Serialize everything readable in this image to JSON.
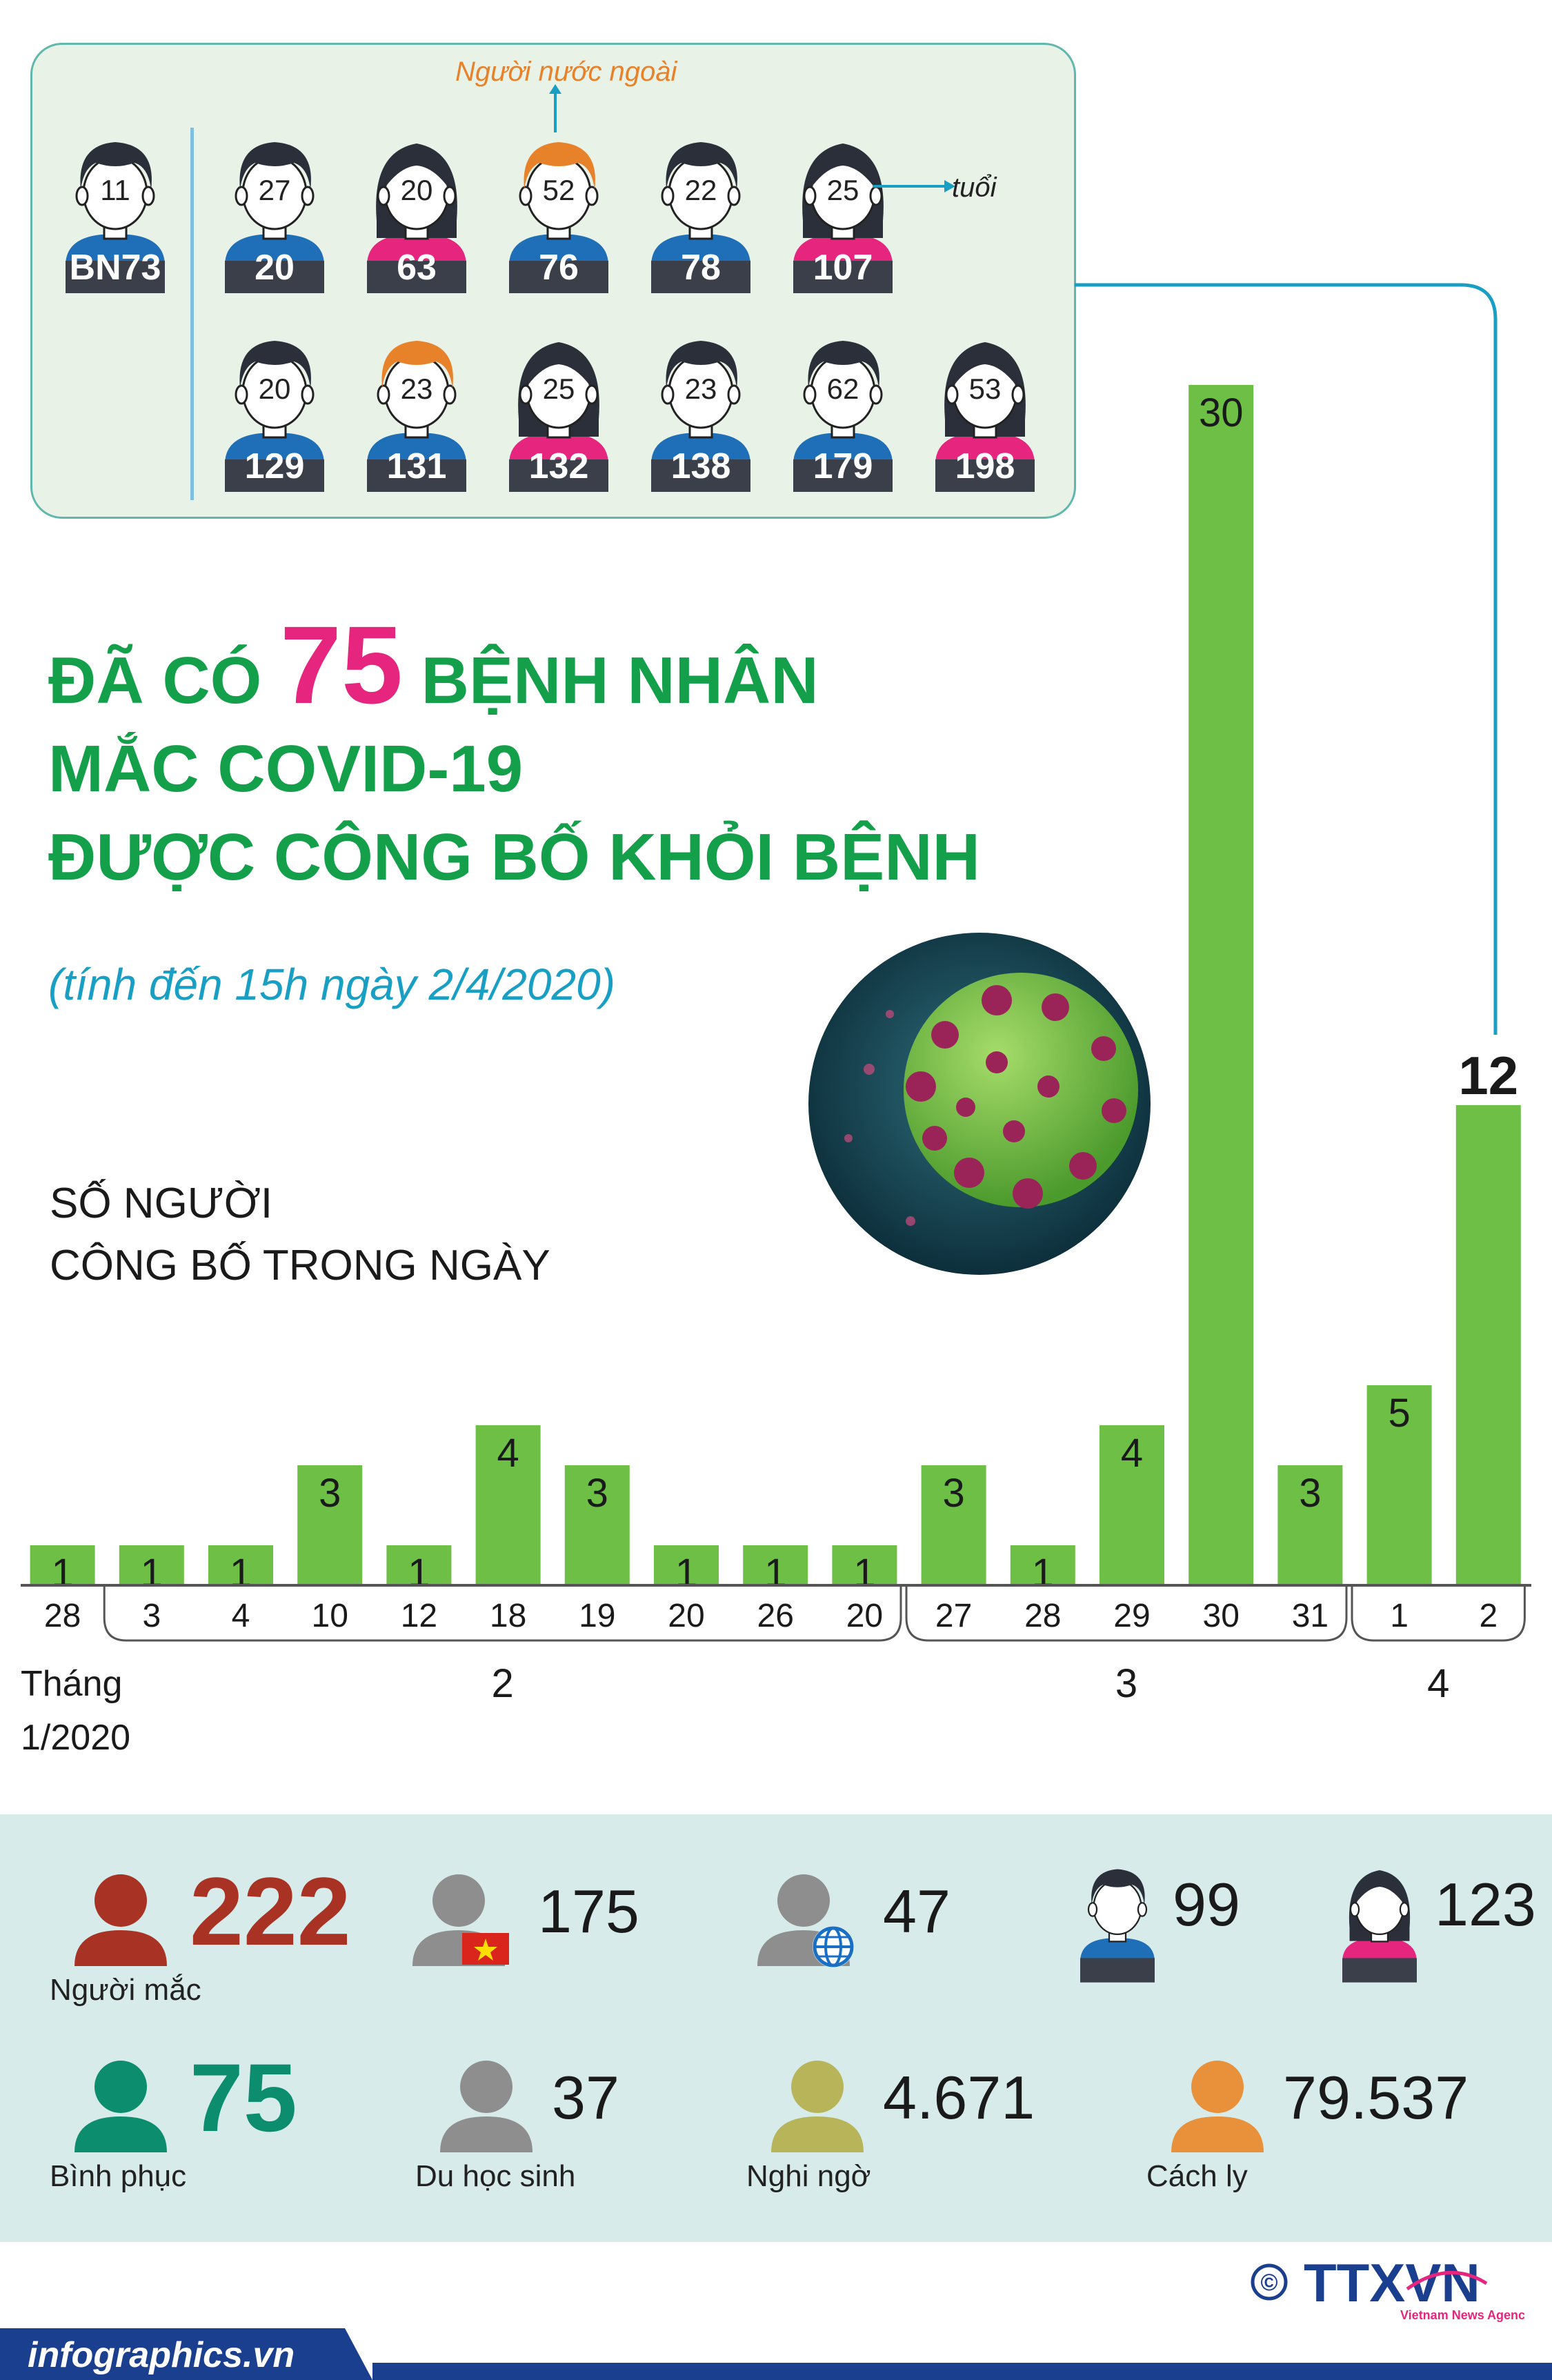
{
  "patients": {
    "first": {
      "age": "11",
      "id": "BN73",
      "gender": "male",
      "hair": "dark"
    },
    "row1": [
      {
        "age": "27",
        "id": "20",
        "gender": "male",
        "hair": "dark"
      },
      {
        "age": "20",
        "id": "63",
        "gender": "female",
        "hair": "dark"
      },
      {
        "age": "52",
        "id": "76",
        "gender": "male",
        "hair": "orange"
      },
      {
        "age": "22",
        "id": "78",
        "gender": "male",
        "hair": "dark"
      },
      {
        "age": "25",
        "id": "107",
        "gender": "female",
        "hair": "dark"
      }
    ],
    "row2": [
      {
        "age": "20",
        "id": "129",
        "gender": "male",
        "hair": "dark"
      },
      {
        "age": "23",
        "id": "131",
        "gender": "male",
        "hair": "orange"
      },
      {
        "age": "25",
        "id": "132",
        "gender": "female",
        "hair": "dark"
      },
      {
        "age": "23",
        "id": "138",
        "gender": "male",
        "hair": "dark"
      },
      {
        "age": "62",
        "id": "179",
        "gender": "male",
        "hair": "dark"
      },
      {
        "age": "53",
        "id": "198",
        "gender": "female",
        "hair": "dark"
      }
    ],
    "foreigner_label": "Người nước ngoài",
    "age_label": "tuổi"
  },
  "title": {
    "line1_pre": "ĐÃ CÓ",
    "number": "75",
    "line1_post": "BỆNH NHÂN",
    "line2": "MẮC COVID-19",
    "line3": "ĐƯỢC CÔNG BỐ KHỎI BỆNH"
  },
  "subtitle": "(tính đến 15h ngày 2/4/2020)",
  "chart_data": {
    "type": "bar",
    "title": "SỐ NGƯỜI CÔNG BỐ TRONG NGÀY",
    "title_lines": [
      "SỐ NGƯỜI",
      "CÔNG BỐ TRONG NGÀY"
    ],
    "categories": [
      "28",
      "3",
      "4",
      "10",
      "12",
      "18",
      "19",
      "20",
      "26",
      "20",
      "27",
      "28",
      "29",
      "30",
      "31",
      "1",
      "2"
    ],
    "values": [
      1,
      1,
      1,
      3,
      1,
      4,
      3,
      1,
      1,
      1,
      3,
      1,
      4,
      30,
      3,
      5,
      12
    ],
    "month_groups": [
      {
        "label": "Tháng 1/2020",
        "from": 0,
        "to": 0
      },
      {
        "label": "2",
        "from": 1,
        "to": 9
      },
      {
        "label": "3",
        "from": 10,
        "to": 14
      },
      {
        "label": "4",
        "from": 15,
        "to": 16
      }
    ],
    "month_first_lines": [
      "Tháng",
      "1/2020"
    ],
    "bar_color": "#6dbf45",
    "highlight_index": 16,
    "ylim": [
      0,
      30
    ]
  },
  "stats": [
    {
      "value": "222",
      "label": "Người mắc",
      "color": "#a83224",
      "icon": "person-icon"
    },
    {
      "value": "175",
      "label": "",
      "color": "#8e8e8e",
      "icon": "person-vietnam-flag-icon"
    },
    {
      "value": "47",
      "label": "",
      "color": "#8e8e8e",
      "icon": "person-globe-icon"
    },
    {
      "value": "99",
      "label": "",
      "color": "#1e6fb8",
      "icon": "male-avatar-icon"
    },
    {
      "value": "123",
      "label": "",
      "color": "#e6267e",
      "icon": "female-avatar-icon"
    },
    {
      "value": "75",
      "label": "Bình phục",
      "color": "#0c8e6e",
      "icon": "person-icon"
    },
    {
      "value": "37",
      "label": "Du học sinh",
      "color": "#8e8e8e",
      "icon": "person-icon"
    },
    {
      "value": "4.671",
      "label": "Nghi ngờ",
      "color": "#b8b45a",
      "icon": "person-icon"
    },
    {
      "value": "79.537",
      "label": "Cách ly",
      "color": "#e8903a",
      "icon": "person-icon"
    }
  ],
  "footer": {
    "site": "infographics.vn",
    "copyright": "©",
    "logo": "TTXVN",
    "logo_sub": "Vietnam News Agency"
  },
  "colors": {
    "green": "#6dbf45",
    "title_green": "#14a04a",
    "pink": "#e6267e",
    "cyan": "#1a9fc4",
    "shirt_blue": "#1e6fb8",
    "shirt_pink": "#e6267e",
    "hair_dark": "#2a2f3a",
    "hair_orange": "#e8822a",
    "panel_border": "#5fb7ad",
    "stats_bg": "#d7ecea",
    "footer_blue": "#1b3f8f"
  }
}
